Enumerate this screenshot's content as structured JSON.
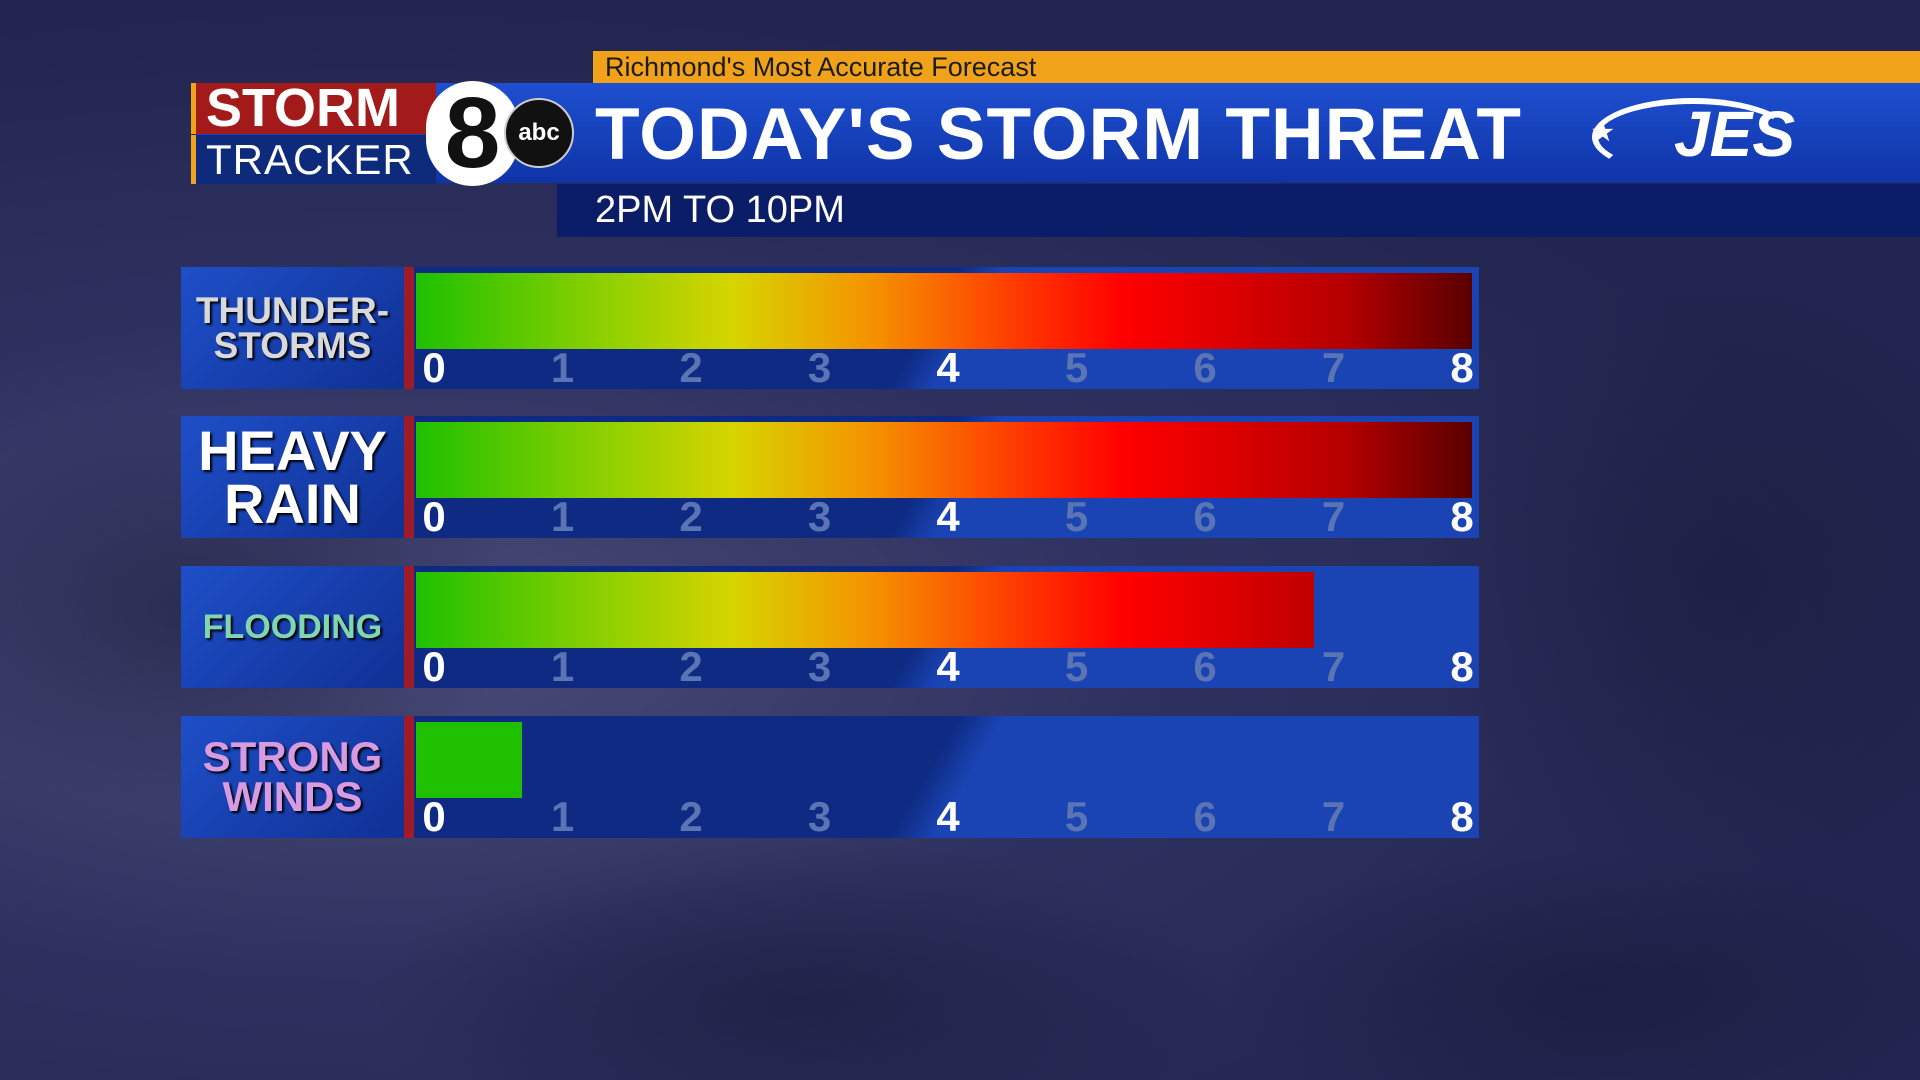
{
  "header": {
    "tagline": "Richmond's Most Accurate Forecast",
    "title": "TODAY'S STORM THREAT",
    "subtitle": "2PM TO 10PM",
    "logo": {
      "storm": "STORM",
      "tracker": "TRACKER",
      "number": "8",
      "network": "abc"
    },
    "sponsor": "JES"
  },
  "colors": {
    "tagline": "#f0a21a",
    "header": "#1e4fd0",
    "low": "#1fc000",
    "mid": "#d6d400",
    "high": "#ff0000",
    "extreme": "#5a0000"
  },
  "scale": {
    "min": 0,
    "max": 8,
    "ticks": [
      "0",
      "1",
      "2",
      "3",
      "4",
      "5",
      "6",
      "7",
      "8"
    ]
  },
  "threats": [
    {
      "label_lines": [
        "THUNDER-",
        "STORMS"
      ],
      "level": 8,
      "label_color": "#d9d9d9"
    },
    {
      "label_lines": [
        "HEAVY",
        "RAIN"
      ],
      "level": 8,
      "label_color": "#ffffff"
    },
    {
      "label_lines": [
        "FLOODING"
      ],
      "level": 6.8,
      "label_color": "#7fd6b0"
    },
    {
      "label_lines": [
        "STRONG",
        "WINDS"
      ],
      "level": 0.8,
      "label_color": "#d89ae0"
    }
  ]
}
